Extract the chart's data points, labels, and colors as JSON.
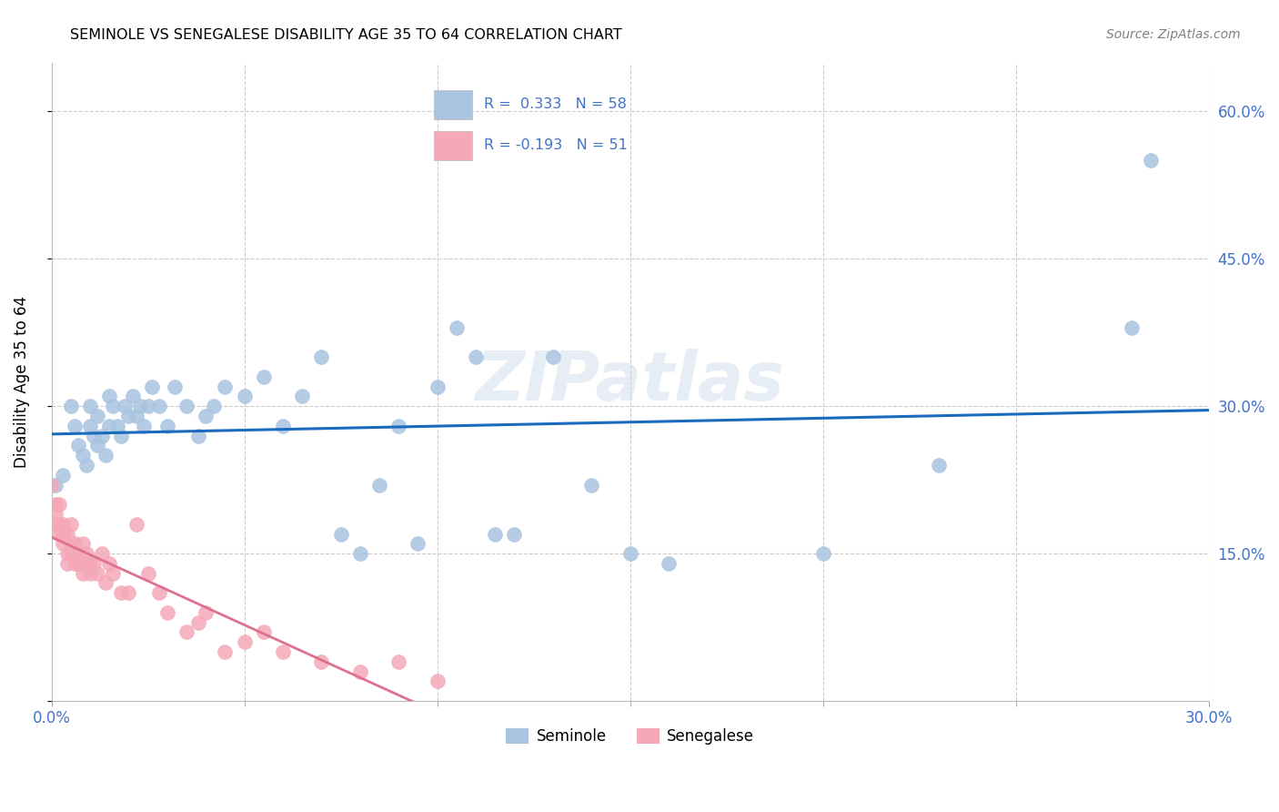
{
  "title": "SEMINOLE VS SENEGALESE DISABILITY AGE 35 TO 64 CORRELATION CHART",
  "source": "Source: ZipAtlas.com",
  "ylabel": "Disability Age 35 to 64",
  "xlim": [
    0.0,
    0.3
  ],
  "ylim": [
    0.0,
    0.65
  ],
  "x_tick_positions": [
    0.0,
    0.05,
    0.1,
    0.15,
    0.2,
    0.25,
    0.3
  ],
  "y_tick_positions": [
    0.0,
    0.15,
    0.3,
    0.45,
    0.6
  ],
  "y_tick_labels_right": [
    "",
    "15.0%",
    "30.0%",
    "45.0%",
    "60.0%"
  ],
  "seminole_color": "#a8c4e0",
  "senegalese_color": "#f4a8b8",
  "trendline_seminole_color": "#1a6bbf",
  "trendline_senegalese_color": "#e07090",
  "watermark": "ZIPatlas",
  "seminole_x": [
    0.001,
    0.003,
    0.005,
    0.006,
    0.007,
    0.008,
    0.009,
    0.01,
    0.01,
    0.011,
    0.012,
    0.012,
    0.013,
    0.014,
    0.015,
    0.015,
    0.016,
    0.017,
    0.018,
    0.019,
    0.02,
    0.021,
    0.022,
    0.023,
    0.024,
    0.025,
    0.026,
    0.028,
    0.03,
    0.032,
    0.035,
    0.038,
    0.04,
    0.042,
    0.045,
    0.05,
    0.055,
    0.06,
    0.065,
    0.07,
    0.075,
    0.08,
    0.085,
    0.09,
    0.095,
    0.1,
    0.105,
    0.11,
    0.115,
    0.12,
    0.13,
    0.14,
    0.15,
    0.16,
    0.2,
    0.23,
    0.28,
    0.285
  ],
  "seminole_y": [
    0.22,
    0.23,
    0.3,
    0.28,
    0.26,
    0.25,
    0.24,
    0.3,
    0.28,
    0.27,
    0.26,
    0.29,
    0.27,
    0.25,
    0.31,
    0.28,
    0.3,
    0.28,
    0.27,
    0.3,
    0.29,
    0.31,
    0.29,
    0.3,
    0.28,
    0.3,
    0.32,
    0.3,
    0.28,
    0.32,
    0.3,
    0.27,
    0.29,
    0.3,
    0.32,
    0.31,
    0.33,
    0.28,
    0.31,
    0.35,
    0.17,
    0.15,
    0.22,
    0.28,
    0.16,
    0.32,
    0.38,
    0.35,
    0.17,
    0.17,
    0.35,
    0.22,
    0.15,
    0.14,
    0.15,
    0.24,
    0.38,
    0.55
  ],
  "senegalese_x": [
    0.0,
    0.001,
    0.001,
    0.001,
    0.002,
    0.002,
    0.002,
    0.003,
    0.003,
    0.003,
    0.004,
    0.004,
    0.004,
    0.005,
    0.005,
    0.005,
    0.006,
    0.006,
    0.006,
    0.007,
    0.007,
    0.008,
    0.008,
    0.008,
    0.009,
    0.009,
    0.01,
    0.01,
    0.011,
    0.012,
    0.013,
    0.014,
    0.015,
    0.016,
    0.018,
    0.02,
    0.022,
    0.025,
    0.028,
    0.03,
    0.035,
    0.038,
    0.04,
    0.045,
    0.05,
    0.055,
    0.06,
    0.07,
    0.08,
    0.09,
    0.1
  ],
  "senegalese_y": [
    0.22,
    0.19,
    0.18,
    0.2,
    0.18,
    0.17,
    0.2,
    0.17,
    0.16,
    0.18,
    0.15,
    0.17,
    0.14,
    0.16,
    0.15,
    0.18,
    0.15,
    0.16,
    0.14,
    0.15,
    0.14,
    0.16,
    0.14,
    0.13,
    0.15,
    0.14,
    0.14,
    0.13,
    0.14,
    0.13,
    0.15,
    0.12,
    0.14,
    0.13,
    0.11,
    0.11,
    0.18,
    0.13,
    0.11,
    0.09,
    0.07,
    0.08,
    0.09,
    0.05,
    0.06,
    0.07,
    0.05,
    0.04,
    0.03,
    0.04,
    0.02
  ]
}
